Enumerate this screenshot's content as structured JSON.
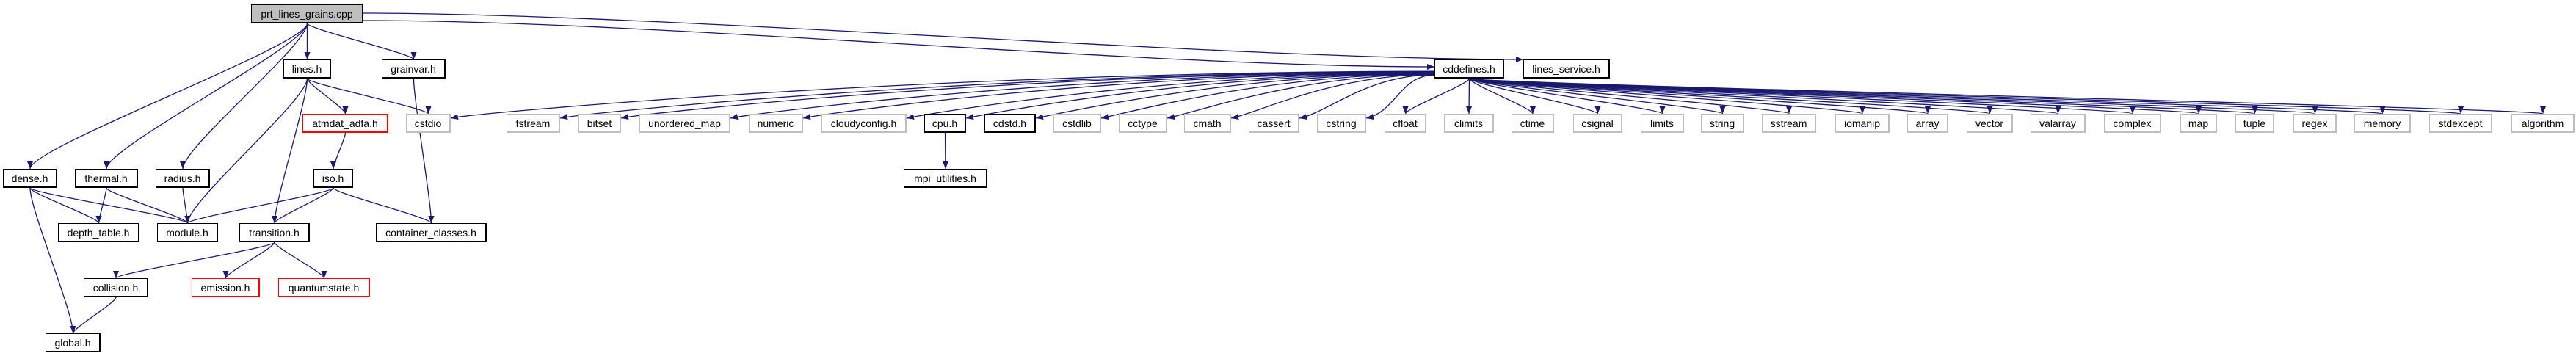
{
  "colors": {
    "edge": "#191970",
    "root_fill": "#bfbfbf",
    "missing_border": "#bfbfbf",
    "truncated_border": "#ff0000",
    "normal_border": "#000000"
  },
  "nodes": [
    {
      "id": "prt",
      "label": "prt_lines_grains.cpp",
      "style": "root"
    },
    {
      "id": "lines",
      "label": "lines.h",
      "style": "black"
    },
    {
      "id": "grainvar",
      "label": "grainvar.h",
      "style": "black"
    },
    {
      "id": "cddefines",
      "label": "cddefines.h",
      "style": "black"
    },
    {
      "id": "lines_service",
      "label": "lines_service.h",
      "style": "black"
    },
    {
      "id": "atmdat_adfa",
      "label": "atmdat_adfa.h",
      "style": "red"
    },
    {
      "id": "cstdio",
      "label": "cstdio",
      "style": "gray"
    },
    {
      "id": "fstream",
      "label": "fstream",
      "style": "gray"
    },
    {
      "id": "bitset",
      "label": "bitset",
      "style": "gray"
    },
    {
      "id": "unordered_map",
      "label": "unordered_map",
      "style": "gray"
    },
    {
      "id": "numeric",
      "label": "numeric",
      "style": "gray"
    },
    {
      "id": "cloudyconfig",
      "label": "cloudyconfig.h",
      "style": "gray"
    },
    {
      "id": "cpu",
      "label": "cpu.h",
      "style": "black"
    },
    {
      "id": "cdstd",
      "label": "cdstd.h",
      "style": "black"
    },
    {
      "id": "cstdlib",
      "label": "cstdlib",
      "style": "gray"
    },
    {
      "id": "cctype",
      "label": "cctype",
      "style": "gray"
    },
    {
      "id": "cmath",
      "label": "cmath",
      "style": "gray"
    },
    {
      "id": "cassert",
      "label": "cassert",
      "style": "gray"
    },
    {
      "id": "cstring",
      "label": "cstring",
      "style": "gray"
    },
    {
      "id": "cfloat",
      "label": "cfloat",
      "style": "gray"
    },
    {
      "id": "climits",
      "label": "climits",
      "style": "gray"
    },
    {
      "id": "ctime",
      "label": "ctime",
      "style": "gray"
    },
    {
      "id": "csignal",
      "label": "csignal",
      "style": "gray"
    },
    {
      "id": "limits",
      "label": "limits",
      "style": "gray"
    },
    {
      "id": "string",
      "label": "string",
      "style": "gray"
    },
    {
      "id": "sstream",
      "label": "sstream",
      "style": "gray"
    },
    {
      "id": "iomanip",
      "label": "iomanip",
      "style": "gray"
    },
    {
      "id": "array",
      "label": "array",
      "style": "gray"
    },
    {
      "id": "vector",
      "label": "vector",
      "style": "gray"
    },
    {
      "id": "valarray",
      "label": "valarray",
      "style": "gray"
    },
    {
      "id": "complex",
      "label": "complex",
      "style": "gray"
    },
    {
      "id": "map",
      "label": "map",
      "style": "gray"
    },
    {
      "id": "tuple",
      "label": "tuple",
      "style": "gray"
    },
    {
      "id": "regex",
      "label": "regex",
      "style": "gray"
    },
    {
      "id": "memory",
      "label": "memory",
      "style": "gray"
    },
    {
      "id": "stdexcept",
      "label": "stdexcept",
      "style": "gray"
    },
    {
      "id": "algorithm",
      "label": "algorithm",
      "style": "gray"
    },
    {
      "id": "dense",
      "label": "dense.h",
      "style": "black"
    },
    {
      "id": "thermal",
      "label": "thermal.h",
      "style": "black"
    },
    {
      "id": "radius",
      "label": "radius.h",
      "style": "black"
    },
    {
      "id": "iso",
      "label": "iso.h",
      "style": "black"
    },
    {
      "id": "mpi_utilities",
      "label": "mpi_utilities.h",
      "style": "black"
    },
    {
      "id": "depth_table",
      "label": "depth_table.h",
      "style": "black"
    },
    {
      "id": "module",
      "label": "module.h",
      "style": "black"
    },
    {
      "id": "transition",
      "label": "transition.h",
      "style": "black"
    },
    {
      "id": "container_classes",
      "label": "container_classes.h",
      "style": "black"
    },
    {
      "id": "collision",
      "label": "collision.h",
      "style": "black"
    },
    {
      "id": "emission",
      "label": "emission.h",
      "style": "red"
    },
    {
      "id": "quantumstate",
      "label": "quantumstate.h",
      "style": "red"
    },
    {
      "id": "global",
      "label": "global.h",
      "style": "black"
    }
  ],
  "edges": [
    [
      "prt",
      "dense"
    ],
    [
      "prt",
      "thermal"
    ],
    [
      "prt",
      "radius"
    ],
    [
      "prt",
      "lines"
    ],
    [
      "prt",
      "grainvar"
    ],
    [
      "prt",
      "cddefines"
    ],
    [
      "prt",
      "lines_service"
    ],
    [
      "lines",
      "atmdat_adfa"
    ],
    [
      "lines",
      "cstdio"
    ],
    [
      "lines",
      "module"
    ],
    [
      "lines",
      "transition"
    ],
    [
      "grainvar",
      "container_classes"
    ],
    [
      "atmdat_adfa",
      "iso"
    ],
    [
      "iso",
      "module"
    ],
    [
      "iso",
      "transition"
    ],
    [
      "iso",
      "container_classes"
    ],
    [
      "dense",
      "depth_table"
    ],
    [
      "dense",
      "module"
    ],
    [
      "dense",
      "global"
    ],
    [
      "thermal",
      "depth_table"
    ],
    [
      "thermal",
      "module"
    ],
    [
      "radius",
      "module"
    ],
    [
      "transition",
      "collision"
    ],
    [
      "transition",
      "emission"
    ],
    [
      "transition",
      "quantumstate"
    ],
    [
      "collision",
      "global"
    ],
    [
      "cpu",
      "mpi_utilities"
    ],
    [
      "cddefines",
      "cstdio"
    ],
    [
      "cddefines",
      "fstream"
    ],
    [
      "cddefines",
      "bitset"
    ],
    [
      "cddefines",
      "unordered_map"
    ],
    [
      "cddefines",
      "numeric"
    ],
    [
      "cddefines",
      "cloudyconfig"
    ],
    [
      "cddefines",
      "cpu"
    ],
    [
      "cddefines",
      "cdstd"
    ],
    [
      "cddefines",
      "cstdlib"
    ],
    [
      "cddefines",
      "cctype"
    ],
    [
      "cddefines",
      "cmath"
    ],
    [
      "cddefines",
      "cassert"
    ],
    [
      "cddefines",
      "cstring"
    ],
    [
      "cddefines",
      "cfloat"
    ],
    [
      "cddefines",
      "climits"
    ],
    [
      "cddefines",
      "ctime"
    ],
    [
      "cddefines",
      "csignal"
    ],
    [
      "cddefines",
      "limits"
    ],
    [
      "cddefines",
      "string"
    ],
    [
      "cddefines",
      "sstream"
    ],
    [
      "cddefines",
      "iomanip"
    ],
    [
      "cddefines",
      "array"
    ],
    [
      "cddefines",
      "vector"
    ],
    [
      "cddefines",
      "valarray"
    ],
    [
      "cddefines",
      "complex"
    ],
    [
      "cddefines",
      "map"
    ],
    [
      "cddefines",
      "tuple"
    ],
    [
      "cddefines",
      "regex"
    ],
    [
      "cddefines",
      "memory"
    ],
    [
      "cddefines",
      "stdexcept"
    ],
    [
      "cddefines",
      "algorithm"
    ]
  ]
}
